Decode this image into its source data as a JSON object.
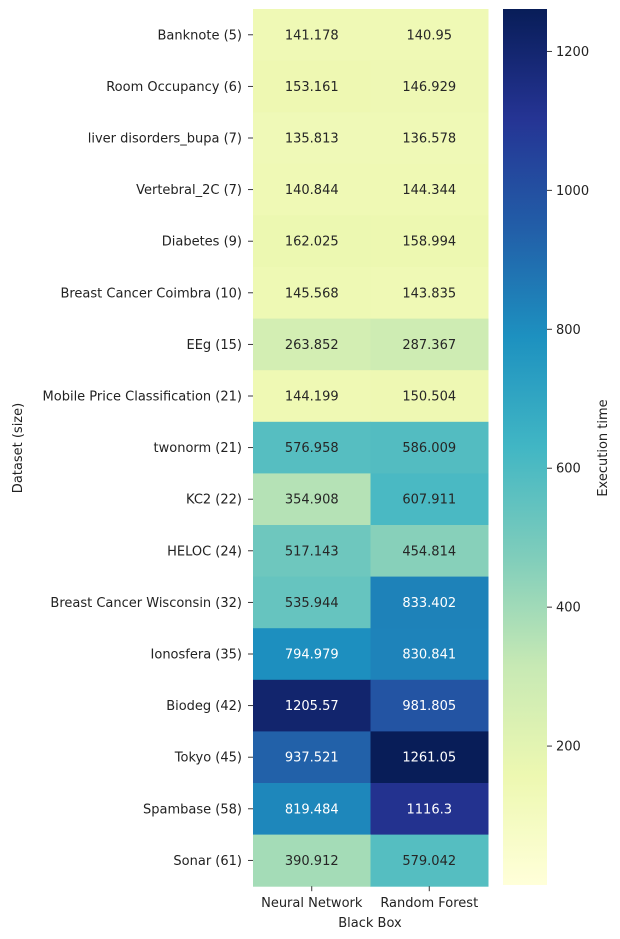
{
  "chart_data": {
    "type": "heatmap",
    "xlabel": "Black Box",
    "ylabel": "Dataset (size)",
    "columns": [
      "Neural Network",
      "Random Forest"
    ],
    "rows": [
      "Banknote (5)",
      "Room Occupancy (6)",
      "liver disorders_bupa (7)",
      "Vertebral_2C (7)",
      "Diabetes (9)",
      "Breast Cancer Coimbra (10)",
      "EEg (15)",
      "Mobile Price Classification (21)",
      "twonorm (21)",
      "KC2 (22)",
      "HELOC (24)",
      "Breast Cancer Wisconsin (32)",
      "Ionosfera (35)",
      "Biodeg (42)",
      "Tokyo (45)",
      "Spambase (58)",
      "Sonar (61)"
    ],
    "values": [
      [
        "141.178",
        "140.95"
      ],
      [
        "153.161",
        "146.929"
      ],
      [
        "135.813",
        "136.578"
      ],
      [
        "140.844",
        "144.344"
      ],
      [
        "162.025",
        "158.994"
      ],
      [
        "145.568",
        "143.835"
      ],
      [
        "263.852",
        "287.367"
      ],
      [
        "144.199",
        "150.504"
      ],
      [
        "576.958",
        "586.009"
      ],
      [
        "354.908",
        "607.911"
      ],
      [
        "517.143",
        "454.814"
      ],
      [
        "535.944",
        "833.402"
      ],
      [
        "794.979",
        "830.841"
      ],
      [
        "1205.57",
        "981.805"
      ],
      [
        "937.521",
        "1261.05"
      ],
      [
        "819.484",
        "1116.3"
      ],
      [
        "390.912",
        "579.042"
      ]
    ],
    "colorbar": {
      "label": "Execution time",
      "range": [
        0,
        1261.05
      ],
      "ticks": [
        "200",
        "400",
        "600",
        "800",
        "1000",
        "1200"
      ],
      "colormap": "YlGnBu"
    }
  }
}
